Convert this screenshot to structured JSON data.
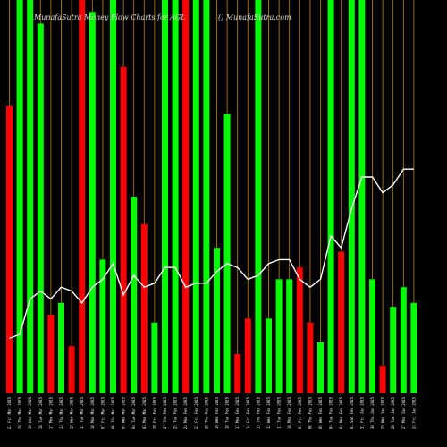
{
  "chart_data": {
    "type": "bar",
    "title": "MunafaSutra  Money Flow  Charts for AGL",
    "watermark": "() MunafaSutra.com",
    "ylim": [
      0,
      100
    ],
    "colors": {
      "background": "#000000",
      "up": "#00ff00",
      "down": "#ff0000",
      "grid": "#b8860b",
      "line": "#ffffff"
    },
    "categories": [
      "21 Fri Mar 2025",
      "20 Thu Mar 2025",
      "19 Wed Mar 2025",
      "18 Tue Mar 2025",
      "17 Mon Mar 2025",
      "13 Thu Mar 2025",
      "12 Wed Mar 2025",
      "11 Tue Mar 2025",
      "10 Mon Mar 2025",
      "07 Fri Mar 2025",
      "06 Thu Mar 2025",
      "05 Wed Mar 2025",
      "04 Tue Mar 2025",
      "03 Mon Mar 2025",
      "28 Fri Feb 2025",
      "27 Thu Feb 2025",
      "25 Tue Feb 2025",
      "24 Mon Feb 2025",
      "21 Fri Feb 2025",
      "20 Thu Feb 2025",
      "19 Wed Feb 2025",
      "18 Tue Feb 2025",
      "17 Mon Feb 2025",
      "14 Fri Feb 2025",
      "13 Thu Feb 2025",
      "12 Wed Feb 2025",
      "11 Tue Feb 2025",
      "10 Mon Feb 2025",
      "07 Fri Feb 2025",
      "06 Thu Feb 2025",
      "05 Wed Feb 2025",
      "04 Tue Feb 2025",
      "03 Mon Feb 2025",
      "01 Sat Feb 2025",
      "31 Fri Jan 2025",
      "30 Thu Jan 2025",
      "29 Wed Jan 2025",
      "28 Tue Jan 2025",
      "27 Mon Jan 2025",
      "24 Fri Jan 2025"
    ],
    "bars": [
      {
        "value": 73,
        "dir": "down"
      },
      {
        "value": 100,
        "dir": "up"
      },
      {
        "value": 100,
        "dir": "up"
      },
      {
        "value": 94,
        "dir": "up"
      },
      {
        "value": 20,
        "dir": "down"
      },
      {
        "value": 23,
        "dir": "up"
      },
      {
        "value": 12,
        "dir": "down"
      },
      {
        "value": 100,
        "dir": "down"
      },
      {
        "value": 97,
        "dir": "up"
      },
      {
        "value": 34,
        "dir": "up"
      },
      {
        "value": 100,
        "dir": "up"
      },
      {
        "value": 83,
        "dir": "down"
      },
      {
        "value": 50,
        "dir": "up"
      },
      {
        "value": 43,
        "dir": "down"
      },
      {
        "value": 18,
        "dir": "up"
      },
      {
        "value": 100,
        "dir": "up"
      },
      {
        "value": 100,
        "dir": "up"
      },
      {
        "value": 100,
        "dir": "down"
      },
      {
        "value": 100,
        "dir": "up"
      },
      {
        "value": 100,
        "dir": "up"
      },
      {
        "value": 37,
        "dir": "up"
      },
      {
        "value": 71,
        "dir": "up"
      },
      {
        "value": 10,
        "dir": "down"
      },
      {
        "value": 19,
        "dir": "down"
      },
      {
        "value": 100,
        "dir": "up"
      },
      {
        "value": 19,
        "dir": "up"
      },
      {
        "value": 29,
        "dir": "up"
      },
      {
        "value": 29,
        "dir": "up"
      },
      {
        "value": 32,
        "dir": "down"
      },
      {
        "value": 18,
        "dir": "down"
      },
      {
        "value": 13,
        "dir": "up"
      },
      {
        "value": 100,
        "dir": "up"
      },
      {
        "value": 36,
        "dir": "down"
      },
      {
        "value": 100,
        "dir": "up"
      },
      {
        "value": 100,
        "dir": "up"
      },
      {
        "value": 29,
        "dir": "up"
      },
      {
        "value": 7,
        "dir": "down"
      },
      {
        "value": 22,
        "dir": "up"
      },
      {
        "value": 27,
        "dir": "up"
      },
      {
        "value": 23,
        "dir": "up"
      }
    ],
    "line": [
      14,
      15,
      24,
      26,
      24,
      27,
      26,
      23,
      27,
      29,
      33,
      25,
      30,
      27,
      28,
      32,
      32,
      27,
      28,
      28,
      31,
      33,
      32,
      29,
      30,
      33,
      34,
      34,
      29,
      27,
      29,
      40,
      37,
      47,
      55,
      55,
      51,
      53,
      57,
      57
    ]
  }
}
